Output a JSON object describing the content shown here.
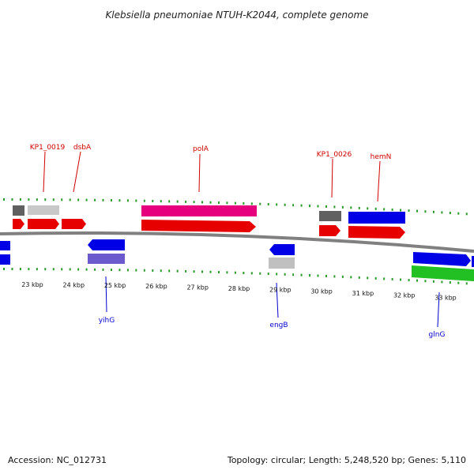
{
  "title": "Klebsiella pneumoniae NTUH-K2044, complete genome",
  "footer": {
    "accession": "Accession: NC_012731",
    "summary": "Topology: circular; Length: 5,248,520 bp; Genes: 5,110"
  },
  "ticks": [
    {
      "label": "23 kbp"
    },
    {
      "label": "24 kbp"
    },
    {
      "label": "25 kbp"
    },
    {
      "label": "26 kbp"
    },
    {
      "label": "27 kbp"
    },
    {
      "label": "28 kbp"
    },
    {
      "label": "29 kbp"
    },
    {
      "label": "30 kbp"
    },
    {
      "label": "31 kbp"
    },
    {
      "label": "32 kbp"
    },
    {
      "label": "33 kbp"
    }
  ],
  "top_labels": [
    {
      "text": "KP1_0019"
    },
    {
      "text": "dsbA"
    },
    {
      "text": "polA"
    },
    {
      "text": "KP1_0026"
    },
    {
      "text": "hemN"
    }
  ],
  "bottom_labels": [
    {
      "text": "yihG"
    },
    {
      "text": "engB"
    },
    {
      "text": "glnG"
    }
  ],
  "colors": {
    "red": "#e60000",
    "magenta": "#e6007e",
    "blue": "#0000e6",
    "lavender": "#6a5acd",
    "grey": "#bbbbbb",
    "darkgrey": "#555555",
    "green": "#22c022",
    "backbone": "#808080",
    "tick": "#2a9a2a"
  }
}
